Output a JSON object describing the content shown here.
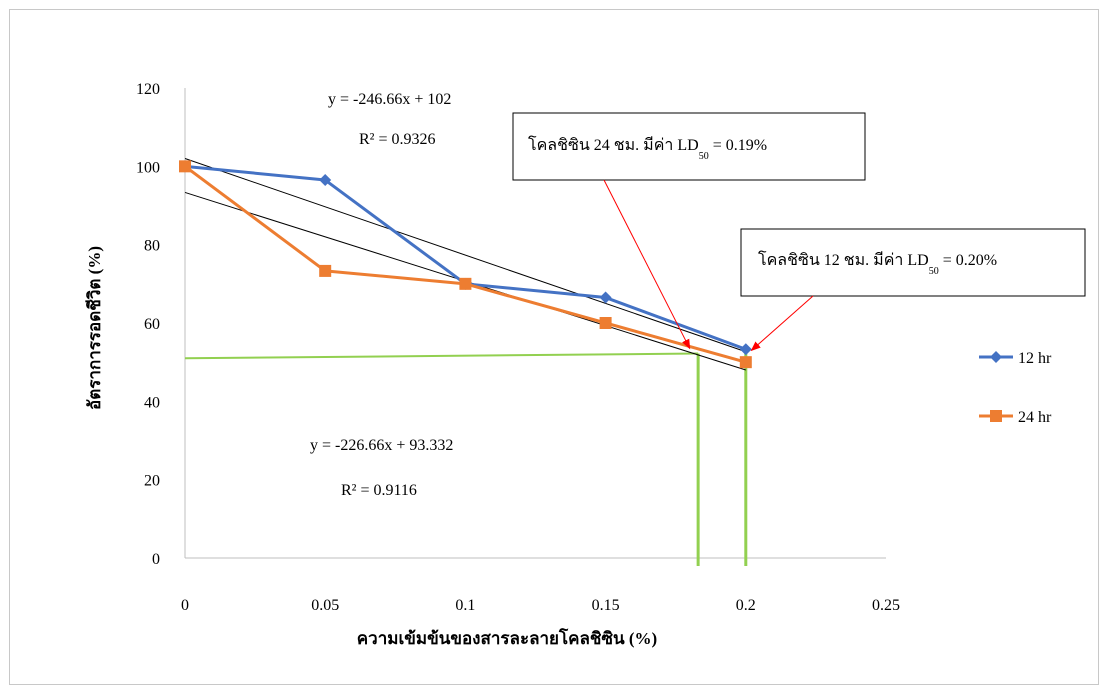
{
  "chart_data": {
    "type": "line",
    "xlabel": "ความเข้มข้นของสารละลายโคลชิซิน (%)",
    "ylabel": "อัตราการรอดชีวิต (%)",
    "xlim": [
      0,
      0.25
    ],
    "ylim": [
      0,
      120
    ],
    "x_ticks": [
      "0",
      "0.05",
      "0.1",
      "0.15",
      "0.2",
      "0.25"
    ],
    "y_ticks": [
      "0",
      "20",
      "40",
      "60",
      "80",
      "100",
      "120"
    ],
    "legend_position": "right",
    "grid": false,
    "x": [
      0,
      0.05,
      0.1,
      0.15,
      0.2
    ],
    "series": [
      {
        "name": "12 hr",
        "color": "#4472c4",
        "marker": "diamond",
        "values": [
          100,
          96.5,
          70,
          66.5,
          53.3
        ]
      },
      {
        "name": "24 hr",
        "color": "#ed7d31",
        "marker": "square",
        "values": [
          100,
          73.3,
          70,
          60,
          50
        ]
      }
    ],
    "trendlines": [
      {
        "series": "12 hr",
        "slope": -246.66,
        "intercept": 102,
        "color": "#000000",
        "equation": "y = -246.66x + 102",
        "r2": "R² = 0.9326"
      },
      {
        "series": "24 hr",
        "slope": -226.66,
        "intercept": 93.332,
        "color": "#000000",
        "equation": "y = -226.66x + 93.332",
        "r2": "R² = 0.9116"
      }
    ],
    "ld50_guides": {
      "color": "#92d050",
      "horizontal": {
        "x_start": 0,
        "x_end": 0.183,
        "y_start": 51,
        "y_end": 52.2
      },
      "verticals": [
        {
          "x": 0.183
        },
        {
          "x": 0.2
        }
      ]
    },
    "callouts": [
      {
        "prefix": "โคลชิซิน 24 ชม. มีค่า LD",
        "sub": "50",
        "suffix": " = 0.19%",
        "arrow_to": {
          "x": 0.18,
          "y": 53.5
        },
        "arrow_color": "#ff0000"
      },
      {
        "prefix": "โคลชิซิน 12 ชม. มีค่า LD",
        "sub": "50",
        "suffix": " = 0.20%",
        "arrow_to": {
          "x": 0.202,
          "y": 53
        },
        "arrow_color": "#ff0000"
      }
    ]
  }
}
